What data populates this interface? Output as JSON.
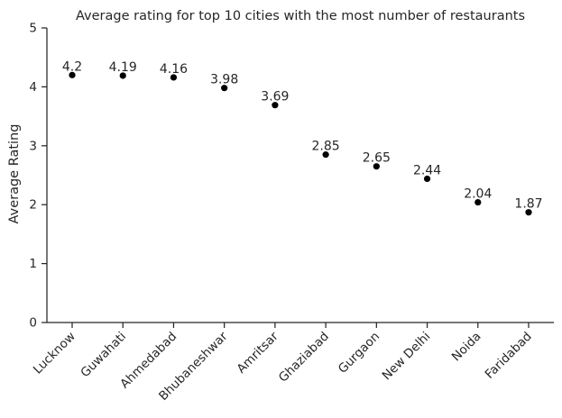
{
  "chart_data": {
    "type": "scatter",
    "title": "Average rating for top 10 cities with the most number of restaurants",
    "xlabel": "",
    "ylabel": "Average Rating",
    "categories": [
      "Lucknow",
      "Guwahati",
      "Ahmedabad",
      "Bhubaneshwar",
      "Amritsar",
      "Ghaziabad",
      "Gurgaon",
      "New Delhi",
      "Noida",
      "Faridabad"
    ],
    "values": [
      4.2,
      4.19,
      4.16,
      3.98,
      3.69,
      2.85,
      2.65,
      2.44,
      2.04,
      1.87
    ],
    "data_labels": [
      "4.2",
      "4.19",
      "4.16",
      "3.98",
      "3.69",
      "2.85",
      "2.65",
      "2.44",
      "2.04",
      "1.87"
    ],
    "ylim": [
      0,
      5
    ],
    "yticks": [
      0,
      1,
      2,
      3,
      4,
      5
    ],
    "grid": false,
    "point_color": "#000000",
    "text_color": "#262626"
  }
}
